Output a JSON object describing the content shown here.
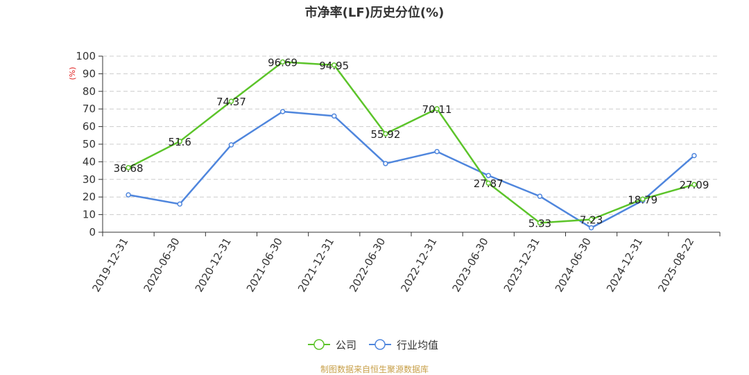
{
  "chart_data": {
    "type": "line",
    "title": "市净率(LF)历史分位(%)",
    "ylabel": "(%)",
    "ylim": [
      0,
      100
    ],
    "yticks": [
      0,
      10,
      20,
      30,
      40,
      50,
      60,
      70,
      80,
      90,
      100
    ],
    "grid": true,
    "legend_placement": "bottom",
    "categories": [
      "2019-12-31",
      "2020-06-30",
      "2020-12-31",
      "2021-06-30",
      "2021-12-31",
      "2022-06-30",
      "2022-12-31",
      "2023-06-30",
      "2023-12-31",
      "2024-06-30",
      "2024-12-31",
      "2025-08-22"
    ],
    "series": [
      {
        "name": "公司",
        "color": "#5cc42a",
        "values": [
          36.68,
          51.6,
          74.37,
          96.69,
          94.95,
          55.92,
          70.11,
          27.87,
          5.33,
          7.23,
          18.79,
          27.09
        ]
      },
      {
        "name": "行业均值",
        "color": "#4f86dd",
        "values": [
          21.2,
          16.0,
          49.6,
          68.5,
          66.0,
          39.0,
          45.8,
          32.2,
          20.4,
          2.5,
          18.0,
          43.5
        ]
      }
    ],
    "data_labels": [
      "36.68",
      "51.6",
      "74.37",
      "96.69",
      "94.95",
      "55.92",
      "70.11",
      "27.87",
      "5.33",
      "7.23",
      "18.79",
      "27.09"
    ]
  },
  "source_note": "制图数据来自恒生聚源数据库"
}
